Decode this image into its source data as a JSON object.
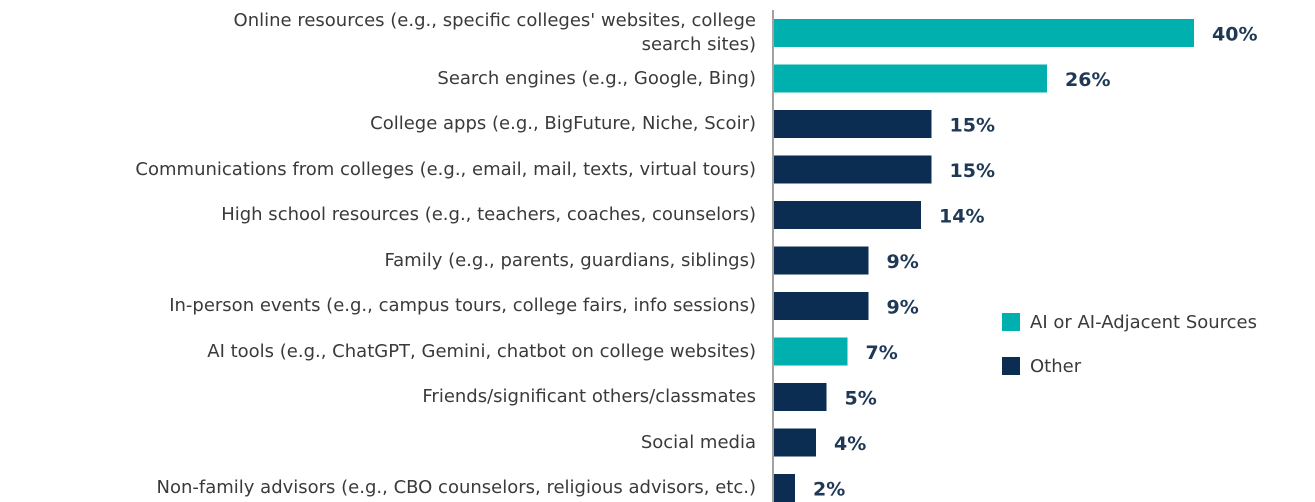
{
  "chart_data": {
    "type": "bar",
    "orientation": "horizontal",
    "categories": [
      "Online resources (e.g., specific colleges' websites, college\nsearch sites)",
      "Search engines (e.g., Google, Bing)",
      "College apps (e.g., BigFuture, Niche, Scoir)",
      "Communications from colleges (e.g., email, mail, texts, virtual tours)",
      "High school resources (e.g., teachers, coaches, counselors)",
      "Family (e.g., parents, guardians, siblings)",
      "In-person events (e.g., campus tours, college fairs, info sessions)",
      "AI tools (e.g., ChatGPT, Gemini, chatbot on college websites)",
      "Friends/significant others/classmates",
      "Social media",
      "Non-family advisors (e.g., CBO counselors, religious advisors, etc.)"
    ],
    "values": [
      40,
      26,
      15,
      15,
      14,
      9,
      9,
      7,
      5,
      4,
      2
    ],
    "value_labels": [
      "40%",
      "26%",
      "15%",
      "15%",
      "14%",
      "9%",
      "9%",
      "7%",
      "5%",
      "4%",
      "2%"
    ],
    "bar_colors": [
      "#00b0ae",
      "#00b0ae",
      "#0b2d52",
      "#0b2d52",
      "#0b2d52",
      "#0b2d52",
      "#0b2d52",
      "#00b0ae",
      "#0b2d52",
      "#0b2d52",
      "#0b2d52"
    ],
    "legend": [
      {
        "name": "AI or AI-Adjacent Sources",
        "color": "#00b0ae"
      },
      {
        "name": "Other",
        "color": "#0b2d52"
      }
    ]
  }
}
